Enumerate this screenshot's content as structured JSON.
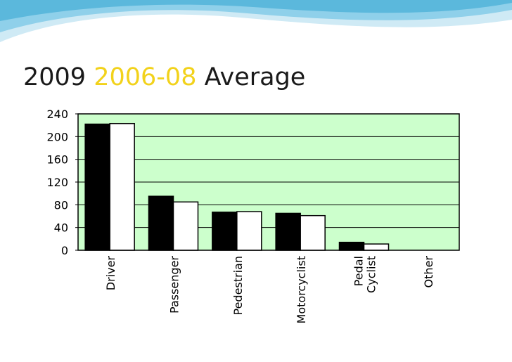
{
  "slide": {
    "title_part1": "2009",
    "title_part2": "2006-08",
    "title_part3": "Average",
    "accent_color": "#f2d21b",
    "wave_colors": [
      "#cfeaf5",
      "#8fd0ea",
      "#5bb8dc"
    ]
  },
  "chart_data": {
    "type": "bar",
    "title": "",
    "xlabel": "",
    "ylabel": "",
    "categories": [
      "Driver",
      "Passenger",
      "Pedestrian",
      "Motorcyclist",
      "Pedal Cyclist",
      "Other"
    ],
    "category_lines": [
      [
        "Driver"
      ],
      [
        "Passenger"
      ],
      [
        "Pedestrian"
      ],
      [
        "Motorcyclist"
      ],
      [
        "Pedal",
        "Cyclist"
      ],
      [
        "Other"
      ]
    ],
    "series": [
      {
        "values": [
          222,
          95,
          67,
          65,
          14,
          0
        ],
        "color": "#000000"
      },
      {
        "values": [
          223,
          85,
          68,
          61,
          11,
          0
        ],
        "color": "#ffffff"
      }
    ],
    "ylim": [
      0,
      240
    ],
    "yticks": [
      "0",
      "40",
      "80",
      "120",
      "160",
      "200",
      "240"
    ],
    "grid": true,
    "plot_background": "#ccffcc",
    "legend": "none"
  }
}
